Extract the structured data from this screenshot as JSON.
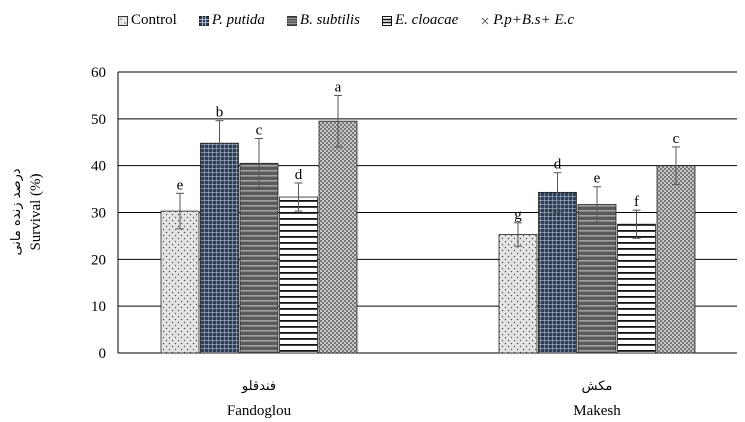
{
  "chart_data": {
    "type": "bar",
    "ylabel_fa": "درصد زنده مانی",
    "ylabel": "Survival (%)",
    "ylim": [
      0,
      60
    ],
    "yticks": [
      0,
      10,
      20,
      30,
      40,
      50,
      60
    ],
    "categories": [
      {
        "label_fa": "فندقلو",
        "label": "Fandoglou"
      },
      {
        "label_fa": "مکش",
        "label": "Makesh"
      }
    ],
    "series": [
      {
        "name": "Control",
        "italic": false,
        "pattern": "dots",
        "values": [
          30.3,
          25.3
        ],
        "errors": [
          3.8,
          2.5
        ],
        "letters": [
          "e",
          "g"
        ]
      },
      {
        "name": "P. putida",
        "italic": true,
        "pattern": "grid",
        "values": [
          44.8,
          34.3
        ],
        "errors": [
          4.8,
          4.2
        ],
        "letters": [
          "b",
          "d"
        ]
      },
      {
        "name": "B. subtilis",
        "italic": true,
        "pattern": "hstripes",
        "values": [
          40.5,
          31.7
        ],
        "errors": [
          5.3,
          3.8
        ],
        "letters": [
          "c",
          "e"
        ]
      },
      {
        "name": "E. cloacae",
        "italic": true,
        "pattern": "hlines",
        "values": [
          33.3,
          27.5
        ],
        "errors": [
          3.0,
          3.0
        ],
        "letters": [
          "d",
          "f"
        ]
      },
      {
        "name": "P.p+B.s+ E.c",
        "italic": true,
        "pattern": "checker",
        "values": [
          49.5,
          40.0
        ],
        "errors": [
          5.5,
          4.0
        ],
        "letters": [
          "a",
          "c"
        ]
      }
    ],
    "grid": true,
    "legend_position": "top"
  }
}
